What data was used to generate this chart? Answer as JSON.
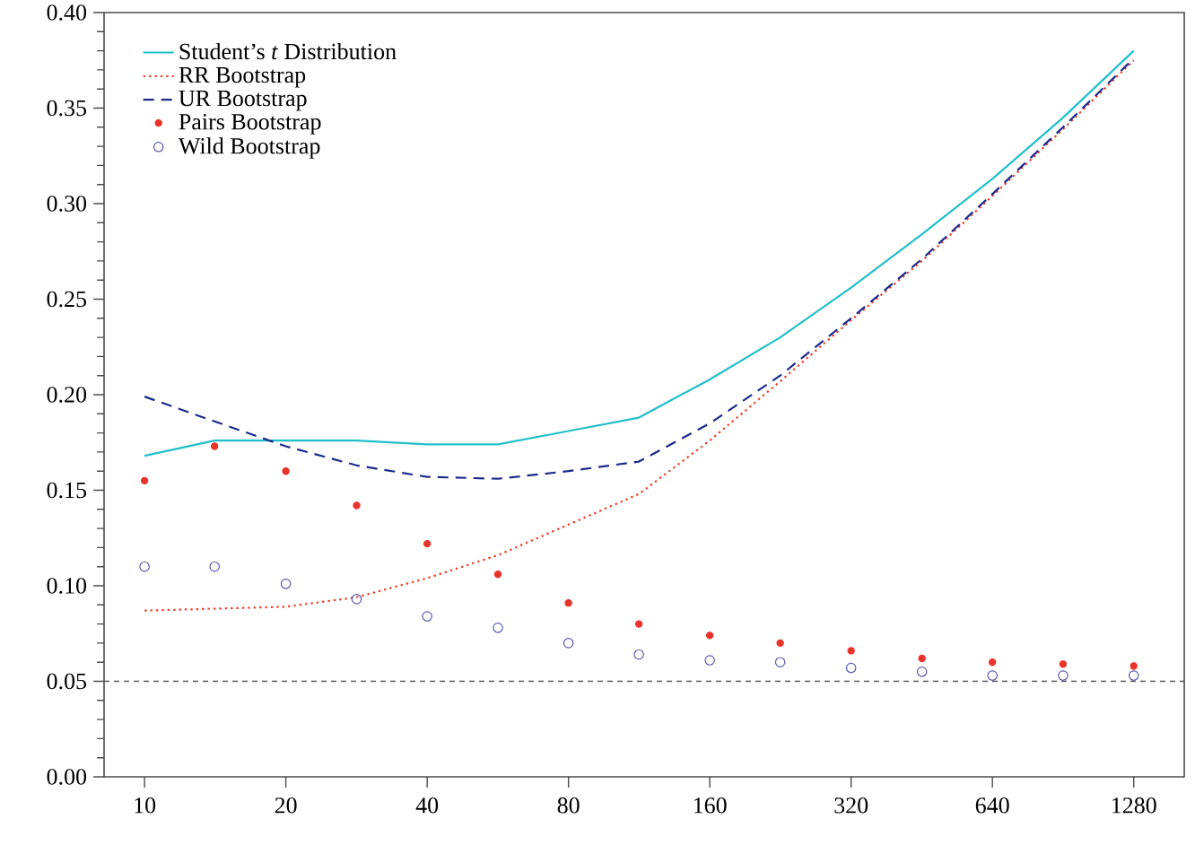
{
  "chart_data": {
    "type": "line",
    "x": [
      10,
      14.1,
      20,
      28.3,
      40,
      56.6,
      80,
      113,
      160,
      226,
      320,
      453,
      640,
      905,
      1280
    ],
    "series": [
      {
        "name": "Student’s *t* Distribution",
        "color": "#22bfc9",
        "line_style": "solid",
        "values": [
          0.168,
          0.176,
          0.176,
          0.176,
          0.174,
          0.174,
          0.181,
          0.188,
          0.208,
          0.23,
          0.256,
          0.284,
          0.313,
          0.345,
          0.38
        ]
      },
      {
        "name": "RR Bootstrap",
        "color": "#e8432f",
        "line_style": "dotted",
        "values": [
          0.087,
          0.088,
          0.089,
          0.094,
          0.104,
          0.116,
          0.132,
          0.148,
          0.176,
          0.207,
          0.239,
          0.27,
          0.304,
          0.339,
          0.375
        ]
      },
      {
        "name": "UR Bootstrap",
        "color": "#1c2a8a",
        "line_style": "dashed",
        "values": [
          0.199,
          0.186,
          0.173,
          0.163,
          0.157,
          0.156,
          0.16,
          0.165,
          0.185,
          0.21,
          0.24,
          0.271,
          0.305,
          0.34,
          0.376
        ]
      },
      {
        "name": "Pairs Bootstrap",
        "type": "scatter",
        "color": "#e8342a",
        "marker": "dot",
        "values": [
          0.155,
          0.173,
          0.16,
          0.142,
          0.122,
          0.106,
          0.091,
          0.08,
          0.074,
          0.07,
          0.066,
          0.062,
          0.06,
          0.059,
          0.058
        ]
      },
      {
        "name": "Wild Bootstrap",
        "type": "scatter",
        "color": "#5a5aaa",
        "marker": "circle",
        "values": [
          0.11,
          0.11,
          0.101,
          0.093,
          0.084,
          0.078,
          0.07,
          0.064,
          0.061,
          0.06,
          0.057,
          0.055,
          0.053,
          0.053,
          0.053
        ]
      }
    ],
    "log": "x",
    "xlim": [
      8.2,
      1640
    ],
    "xticks": [
      10,
      20,
      40,
      80,
      160,
      320,
      640,
      1280
    ],
    "ylim": [
      0,
      0.4
    ],
    "yticks": [
      {
        "value": 0,
        "label": "0.00"
      },
      {
        "value": 0.05,
        "label": "0.05"
      },
      {
        "value": 0.1,
        "label": "0.10"
      },
      {
        "value": 0.15,
        "label": "0.15"
      },
      {
        "value": 0.2,
        "label": "0.20"
      },
      {
        "value": 0.25,
        "label": "0.25"
      },
      {
        "value": 0.3,
        "label": "0.30"
      },
      {
        "value": 0.35,
        "label": "0.35"
      },
      {
        "value": 0.4,
        "label": "0.40"
      }
    ],
    "ref_lines": [
      {
        "axis": "y",
        "value": 0.05,
        "color": "#555555",
        "line_style": "dashed"
      }
    ],
    "grid": false,
    "legend": "top left"
  }
}
